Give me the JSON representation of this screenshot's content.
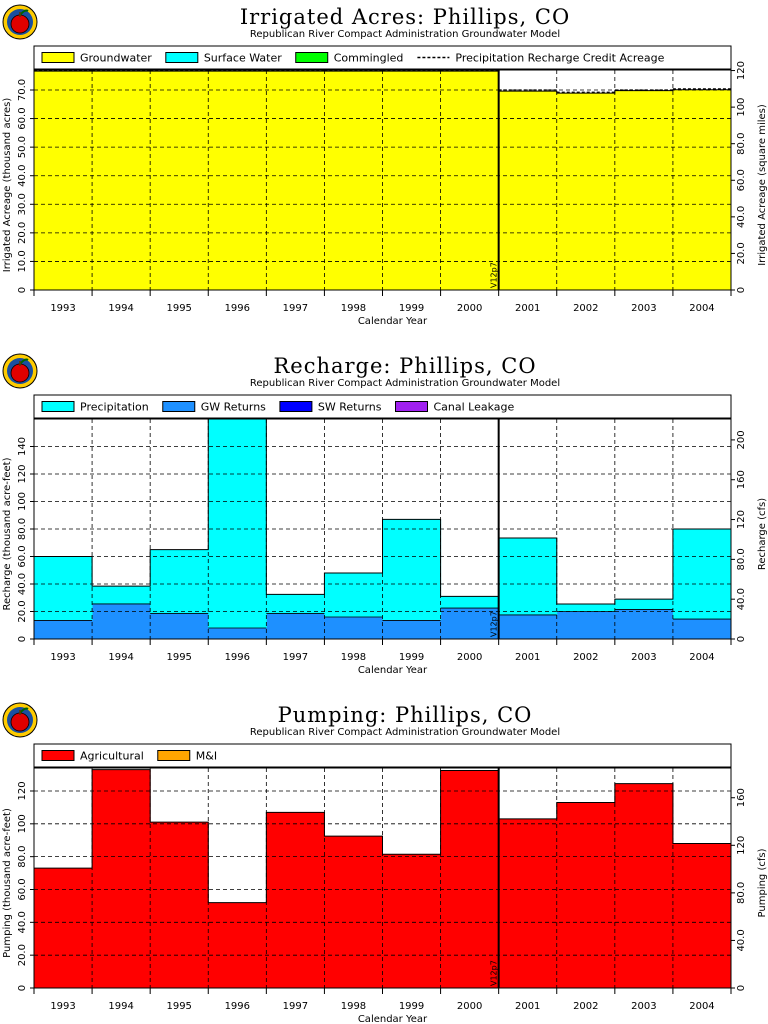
{
  "chart_data": [
    {
      "type": "area",
      "title": "Irrigated Acres: Phillips, CO",
      "subtitle": "Republican River Compact Administration Groundwater Model",
      "xlabel": "Calendar Year",
      "ylabel": "Irrigated Acreage (thousand acres)",
      "y2label": "Irrigated Acreage (square miles)",
      "categories": [
        "1993",
        "1994",
        "1995",
        "1996",
        "1997",
        "1998",
        "1999",
        "2000",
        "2001",
        "2002",
        "2003",
        "2004"
      ],
      "ylim": [
        0,
        77
      ],
      "yticks": [
        "0",
        "10.0",
        "20.0",
        "30.0",
        "40.0",
        "50.0",
        "60.0",
        "70.0"
      ],
      "y2lim": [
        0,
        120.3
      ],
      "y2ticks": [
        "0",
        "20.0",
        "40.0",
        "60.0",
        "80.0",
        "100",
        "120"
      ],
      "stacked": true,
      "series": [
        {
          "name": "Groundwater",
          "color": "#ffff00",
          "values": [
            76.6,
            76.6,
            76.6,
            76.6,
            76.6,
            76.6,
            76.6,
            76.6,
            69.6,
            68.9,
            69.8,
            70.1
          ]
        },
        {
          "name": "Surface Water",
          "color": "#00ffff",
          "values": [
            0,
            0,
            0,
            0,
            0,
            0,
            0,
            0,
            0,
            0,
            0,
            0
          ]
        },
        {
          "name": "Commingled",
          "color": "#00ff00",
          "values": [
            0,
            0,
            0,
            0,
            0,
            0,
            0,
            0,
            0,
            0,
            0,
            0
          ]
        }
      ],
      "line_series": {
        "name": "Precipitation Recharge Credit Acreage",
        "style": "dashed",
        "values": [
          76.8,
          76.8,
          76.8,
          76.8,
          76.8,
          76.8,
          76.8,
          76.8,
          70.0,
          69.2,
          70.0,
          70.4
        ]
      },
      "marker": {
        "label": "V12p7",
        "between": [
          "2000",
          "2001"
        ]
      },
      "grid": true,
      "legend": "top"
    },
    {
      "type": "area",
      "title": "Recharge: Phillips, CO",
      "subtitle": "Republican River Compact Administration Groundwater Model",
      "xlabel": "Calendar Year",
      "ylabel": "Recharge (thousand acre-feet)",
      "y2label": "Recharge (cfs)",
      "categories": [
        "1993",
        "1994",
        "1995",
        "1996",
        "1997",
        "1998",
        "1999",
        "2000",
        "2001",
        "2002",
        "2003",
        "2004"
      ],
      "ylim": [
        0,
        160
      ],
      "yticks": [
        "0",
        "20.0",
        "40.0",
        "60.0",
        "80.0",
        "100",
        "120",
        "140"
      ],
      "y2lim": [
        0,
        221
      ],
      "y2ticks": [
        "0",
        "40.0",
        "80.0",
        "120",
        "160",
        "200"
      ],
      "stacked": true,
      "series": [
        {
          "name": "GW Returns",
          "color": "#1e90ff",
          "values": [
            13.5,
            25.5,
            18.5,
            8.0,
            18.5,
            16.0,
            13.5,
            22.5,
            17.5,
            20.0,
            21.5,
            14.5
          ]
        },
        {
          "name": "SW Returns",
          "color": "#0000ff",
          "values": [
            0,
            0,
            0,
            0,
            0,
            0,
            0,
            0,
            0,
            0,
            0,
            0
          ]
        },
        {
          "name": "Canal Leakage",
          "color": "#a020f0",
          "values": [
            0,
            0,
            0,
            0,
            0,
            0,
            0,
            0,
            0,
            0,
            0,
            0
          ]
        },
        {
          "name": "Precipitation",
          "color": "#00ffff",
          "values": [
            46.5,
            13.0,
            46.5,
            152.0,
            14.0,
            32.0,
            73.5,
            8.5,
            56.0,
            5.5,
            7.5,
            65.5
          ]
        }
      ],
      "marker": {
        "label": "V12p7",
        "between": [
          "2000",
          "2001"
        ]
      },
      "grid": true,
      "legend": "top"
    },
    {
      "type": "area",
      "title": "Pumping: Phillips, CO",
      "subtitle": "Republican River Compact Administration Groundwater Model",
      "xlabel": "Calendar Year",
      "ylabel": "Pumping (thousand acre-feet)",
      "y2label": "Pumping (cfs)",
      "categories": [
        "1993",
        "1994",
        "1995",
        "1996",
        "1997",
        "1998",
        "1999",
        "2000",
        "2001",
        "2002",
        "2003",
        "2004"
      ],
      "ylim": [
        0,
        134
      ],
      "yticks": [
        "0",
        "20.0",
        "40.0",
        "60.0",
        "80.0",
        "100",
        "120"
      ],
      "y2lim": [
        0,
        185
      ],
      "y2ticks": [
        "0",
        "40.0",
        "80.0",
        "120",
        "160"
      ],
      "stacked": true,
      "series": [
        {
          "name": "Agricultural",
          "color": "#ff0000",
          "values": [
            73.0,
            133.0,
            101.0,
            52.0,
            107.0,
            92.5,
            81.5,
            132.5,
            103.0,
            113.0,
            124.5,
            88.0
          ]
        },
        {
          "name": "M&I",
          "color": "#ffa500",
          "values": [
            0,
            0,
            0,
            0,
            0,
            0,
            0,
            0,
            0,
            0,
            0,
            0
          ]
        }
      ],
      "marker": {
        "label": "V12p7",
        "between": [
          "2000",
          "2001"
        ]
      },
      "grid": true,
      "legend": "top"
    }
  ],
  "legend_order": [
    [
      "Groundwater",
      "Surface Water",
      "Commingled",
      "Precipitation Recharge Credit Acreage"
    ],
    [
      "Precipitation",
      "GW Returns",
      "SW Returns",
      "Canal Leakage"
    ],
    [
      "Agricultural",
      "M&I"
    ]
  ],
  "icon": "apple-logo-icon"
}
